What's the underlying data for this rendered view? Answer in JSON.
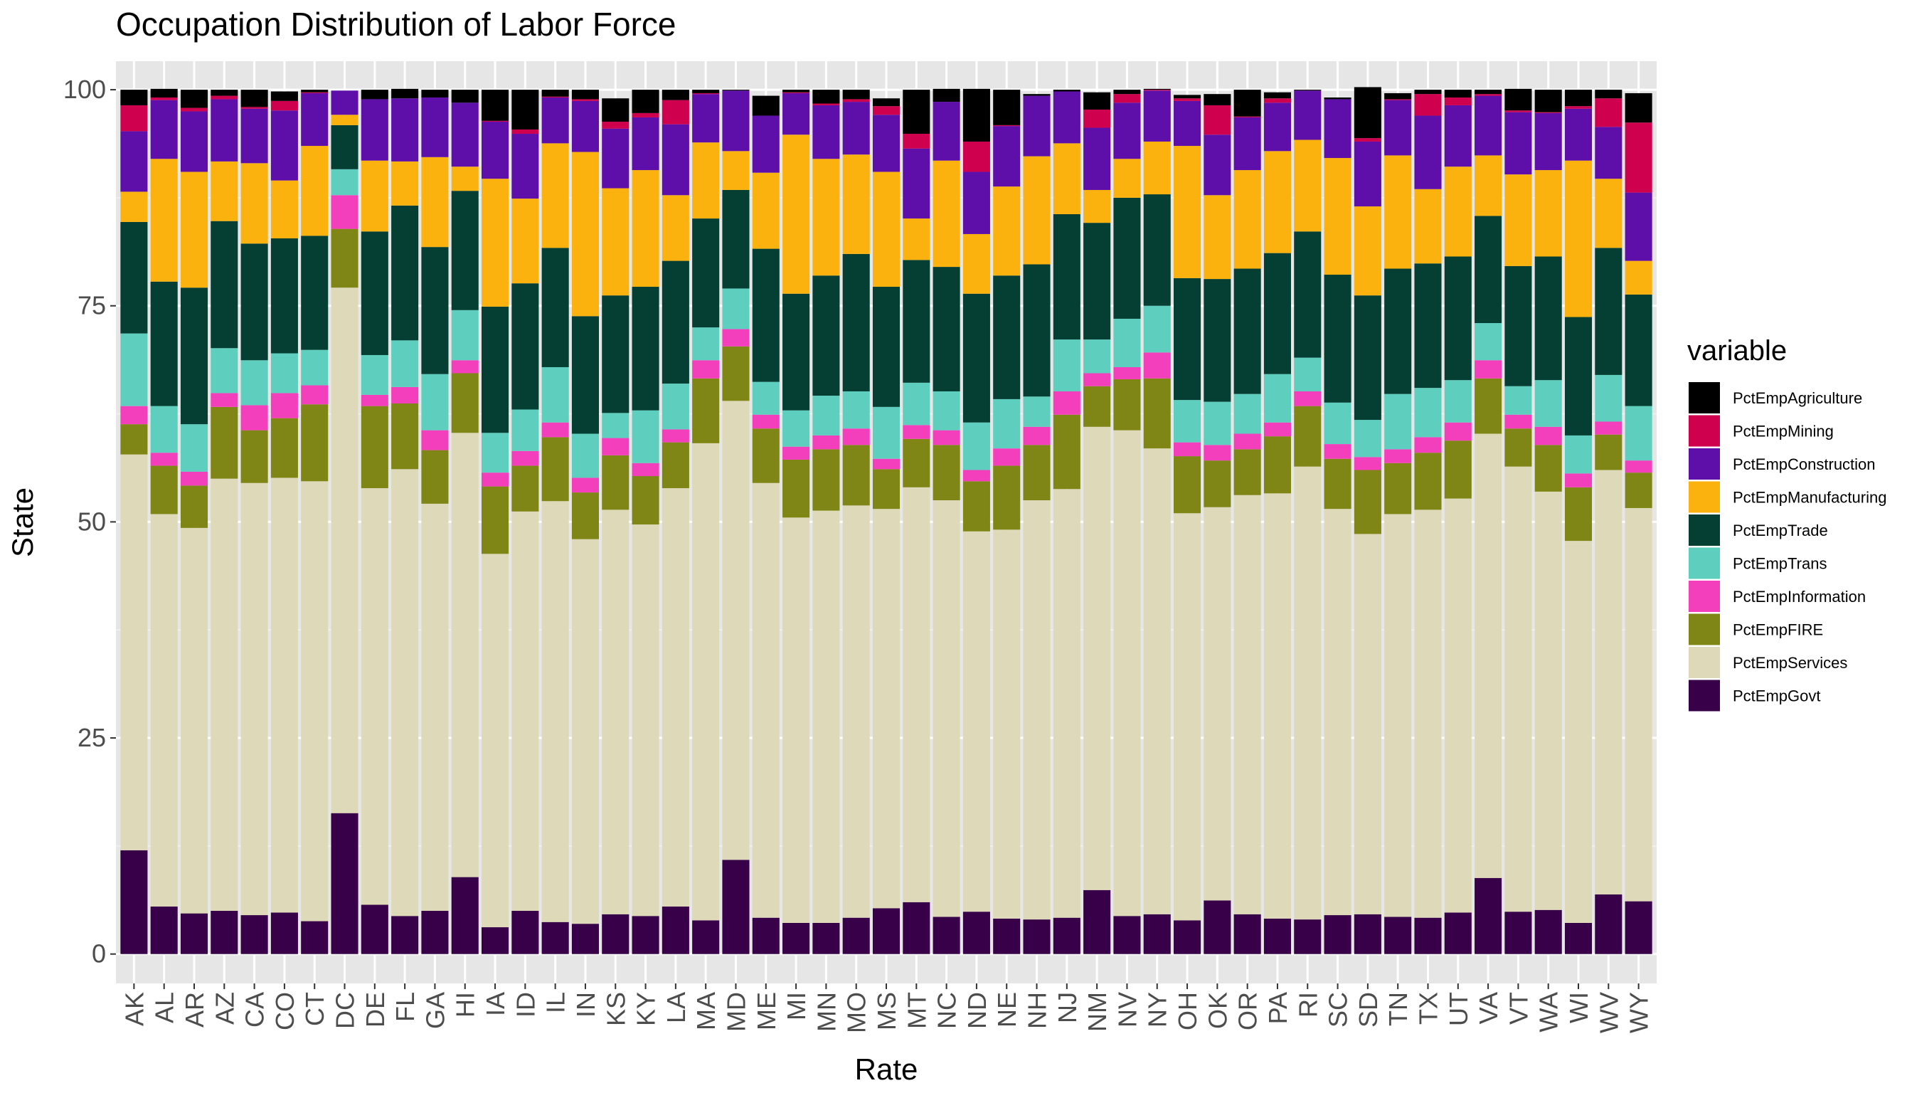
{
  "chart_data": {
    "type": "bar",
    "stacked": true,
    "title": "Occupation Distribution of Labor Force",
    "xlabel": "Rate",
    "ylabel": "State",
    "ylim": [
      0,
      100
    ],
    "yticks": [
      0,
      25,
      50,
      75,
      100
    ],
    "grid": true,
    "legend_title": "variable",
    "legend_position": "right",
    "categories": [
      "AK",
      "AL",
      "AR",
      "AZ",
      "CA",
      "CO",
      "CT",
      "DC",
      "DE",
      "FL",
      "GA",
      "HI",
      "IA",
      "ID",
      "IL",
      "IN",
      "KS",
      "KY",
      "LA",
      "MA",
      "MD",
      "ME",
      "MI",
      "MN",
      "MO",
      "MS",
      "MT",
      "NC",
      "ND",
      "NE",
      "NH",
      "NJ",
      "NM",
      "NV",
      "NY",
      "OH",
      "OK",
      "OR",
      "PA",
      "RI",
      "SC",
      "SD",
      "TN",
      "TX",
      "UT",
      "VA",
      "VT",
      "WA",
      "WI",
      "WV",
      "WY"
    ],
    "series": [
      {
        "name": "PctEmpGovt",
        "color": "#380048",
        "values": [
          12,
          5.5,
          4.7,
          5,
          4.5,
          4.8,
          3.8,
          16.3,
          5.7,
          4.4,
          5,
          8.9,
          3.1,
          5,
          3.7,
          3.5,
          4.6,
          4.4,
          5.5,
          3.9,
          10.9,
          4.2,
          3.6,
          3.6,
          4.2,
          5.3,
          6,
          4.3,
          4.9,
          4.1,
          4,
          4.2,
          7.4,
          4.4,
          4.6,
          3.9,
          6.2,
          4.6,
          4.1,
          4,
          4.5,
          4.6,
          4.3,
          4.2,
          4.8,
          8.8,
          4.9,
          5.1,
          3.6,
          6.9,
          6.1
        ]
      },
      {
        "name": "PctEmpServices",
        "color": "#ded9b9",
        "values": [
          45.8,
          45.4,
          44.6,
          50,
          50,
          50.3,
          50.9,
          60.8,
          48.2,
          51.7,
          47.1,
          51.4,
          43.2,
          46.2,
          48.7,
          44.5,
          46.8,
          45.3,
          48.4,
          55.2,
          53.1,
          50.3,
          46.9,
          47.7,
          47.7,
          46.2,
          48,
          48.2,
          44,
          45,
          48.5,
          49.6,
          53.6,
          56.2,
          53.9,
          47.1,
          45.5,
          48.5,
          49.2,
          52.4,
          47,
          44,
          46.6,
          47.2,
          47.9,
          51.4,
          51.5,
          48.4,
          44.2,
          49.1,
          45.5
        ]
      },
      {
        "name": "PctEmpFIRE",
        "color": "#7f8616",
        "values": [
          3.5,
          5.6,
          4.9,
          8.3,
          6.1,
          6.9,
          8.9,
          6.8,
          9.5,
          7.6,
          6.2,
          6.9,
          7.8,
          5.3,
          7.4,
          5.4,
          6.3,
          5.6,
          5.3,
          7.5,
          6.3,
          6.3,
          6.7,
          7.1,
          7,
          4.6,
          5.6,
          6.4,
          5.8,
          7.4,
          6.4,
          8.6,
          4.7,
          5.9,
          8.1,
          6.6,
          5.4,
          5.3,
          6.6,
          7,
          5.8,
          7.4,
          5.9,
          6.6,
          6.7,
          6.4,
          4.4,
          5.4,
          6.2,
          4.1,
          4.1
        ]
      },
      {
        "name": "PctEmpInformation",
        "color": "#f43fbd",
        "values": [
          2.1,
          1.5,
          1.6,
          1.6,
          2.9,
          2.9,
          2.2,
          3.9,
          1.3,
          1.9,
          2.3,
          1.5,
          1.6,
          1.7,
          1.7,
          1.7,
          2,
          1.5,
          1.5,
          2.1,
          2,
          1.6,
          1.5,
          1.6,
          1.9,
          1.2,
          1.6,
          1.7,
          1.3,
          2,
          2.1,
          2.7,
          1.5,
          1.4,
          3,
          1.6,
          1.8,
          1.8,
          1.6,
          1.7,
          1.7,
          1.5,
          1.6,
          1.8,
          2.1,
          2.1,
          1.6,
          2.1,
          1.6,
          1.5,
          1.4
        ]
      },
      {
        "name": "PctEmpTrans",
        "color": "#5ecebe",
        "values": [
          8.4,
          5.4,
          5.5,
          5.2,
          5.2,
          4.6,
          4.1,
          3,
          4.6,
          5.4,
          6.5,
          5.8,
          4.6,
          4.8,
          6.4,
          5.1,
          2.9,
          6.1,
          5.3,
          3.8,
          4.7,
          3.8,
          4.2,
          4.6,
          4.3,
          6,
          4.9,
          4.5,
          5.5,
          5.7,
          3.5,
          6,
          3.9,
          5.6,
          5.4,
          4.9,
          5,
          4.6,
          5.6,
          3.9,
          4.8,
          4.3,
          6.4,
          5.7,
          4.9,
          4.3,
          3.3,
          5.4,
          4.4,
          5.4,
          6.3
        ]
      },
      {
        "name": "PctEmpTrade",
        "color": "#053f33",
        "values": [
          12.9,
          14.4,
          15.8,
          14.7,
          13.5,
          13.3,
          13.2,
          5.1,
          14.3,
          15.6,
          14.7,
          13.8,
          14.6,
          14.6,
          13.8,
          13.6,
          13.6,
          14.3,
          14.2,
          12.6,
          11.4,
          15.4,
          13.5,
          13.9,
          15.9,
          13.9,
          14.2,
          14.4,
          14.9,
          14.3,
          15.3,
          14.5,
          13.5,
          14,
          12.9,
          14.1,
          14.2,
          14.5,
          14,
          14.6,
          14.8,
          14.4,
          14.5,
          14.4,
          14.3,
          12.4,
          13.9,
          14.3,
          13.7,
          14.7,
          12.9
        ]
      },
      {
        "name": "PctEmpManufacturing",
        "color": "#fbb20f",
        "values": [
          3.5,
          14.2,
          13.4,
          6.9,
          9.3,
          6.7,
          10.4,
          1.2,
          8.2,
          5.1,
          10.4,
          2.8,
          14.8,
          9.8,
          12.1,
          19,
          12.4,
          13.5,
          7.6,
          8.8,
          4.5,
          8.8,
          18.4,
          13.5,
          11.5,
          13.3,
          4.8,
          12.3,
          6.9,
          10.3,
          12.5,
          8.2,
          3.8,
          4.5,
          6.1,
          15.3,
          9.7,
          11.4,
          11.8,
          10.6,
          13.5,
          10.3,
          13.1,
          8.6,
          10.4,
          7,
          10.6,
          10,
          18.1,
          8,
          3.9
        ]
      },
      {
        "name": "PctEmpConstruction",
        "color": "#5e0faa",
        "values": [
          7,
          6.8,
          7,
          7.2,
          6.3,
          8.1,
          6.1,
          2.8,
          7.1,
          7.3,
          6.9,
          7.4,
          6.6,
          7.5,
          5.3,
          5.9,
          6.9,
          6.1,
          8.2,
          5.6,
          7,
          6.6,
          4.8,
          6.2,
          6.1,
          6.6,
          8.1,
          6.8,
          7.2,
          7,
          7,
          6,
          7.2,
          6.5,
          5.9,
          5.2,
          7,
          6.1,
          5.6,
          5.7,
          6.8,
          7.5,
          6.4,
          8.5,
          7.1,
          6.9,
          7.2,
          6.6,
          6,
          6,
          7.9
        ]
      },
      {
        "name": "PctEmpMining",
        "color": "#cf014e",
        "values": [
          3,
          0.3,
          0.4,
          0.4,
          0.2,
          1.1,
          0.1,
          0,
          0,
          0,
          0,
          0,
          0.1,
          0.5,
          0.1,
          0.2,
          0.8,
          0.5,
          2.8,
          0.1,
          0,
          0,
          0.1,
          0.2,
          0.3,
          1,
          1.7,
          0,
          3.5,
          0.1,
          0,
          0,
          2.1,
          1,
          0.1,
          0.3,
          3.4,
          0.1,
          0.5,
          0,
          0,
          0.4,
          0.1,
          2.5,
          0.9,
          0.2,
          0.2,
          0.1,
          0.3,
          3.3,
          8.1
        ]
      },
      {
        "name": "PctEmpAgriculture",
        "color": "#000000",
        "values": [
          1.8,
          1,
          2.1,
          0.7,
          2,
          1.1,
          0.3,
          0,
          1.1,
          1.1,
          0.9,
          1.5,
          3.6,
          4.6,
          0.8,
          1.1,
          2.7,
          2.7,
          1.2,
          0.4,
          0.1,
          2.3,
          0.3,
          1.6,
          1.1,
          0.9,
          5.1,
          1.5,
          6.1,
          4.1,
          0.2,
          0.2,
          2,
          0.5,
          0.1,
          0.4,
          1.3,
          3.1,
          0.7,
          0.1,
          0.2,
          5.9,
          0.7,
          0.5,
          0.9,
          0.5,
          2.5,
          2.6,
          1.9,
          1,
          3.4
        ]
      }
    ]
  }
}
